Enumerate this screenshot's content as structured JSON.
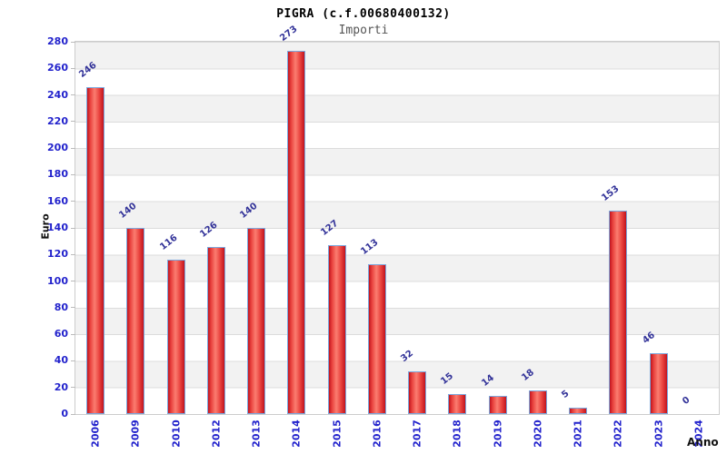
{
  "header": {
    "title": "PIGRA (c.f.00680400132)",
    "subtitle": "Importi"
  },
  "chart_data": {
    "type": "bar",
    "title": "PIGRA (c.f.00680400132)",
    "subtitle": "Importi",
    "xlabel": "Anno",
    "ylabel": "Euro",
    "categories": [
      "2006",
      "2009",
      "2010",
      "2012",
      "2013",
      "2014",
      "2015",
      "2016",
      "2017",
      "2018",
      "2019",
      "2020",
      "2021",
      "2022",
      "2023",
      "2024"
    ],
    "values": [
      246,
      140,
      116,
      126,
      140,
      273,
      127,
      113,
      32,
      15,
      14,
      18,
      5,
      153,
      46,
      0
    ],
    "ylim": [
      0,
      280
    ],
    "ytick_step": 20,
    "yticks": [
      0,
      20,
      40,
      60,
      80,
      100,
      120,
      140,
      160,
      180,
      200,
      220,
      240,
      260,
      280
    ],
    "grid": "horizontal gridlines with alternating gray/white bands every 20 units",
    "legend": "none",
    "colors": {
      "bar_edge": "#c0141f",
      "bar_center": "#fb7d70",
      "bar_border": "#7ba7dd",
      "tick_label": "#2222cc",
      "value_label": "#333399",
      "band_gray": "#f2f2f2",
      "band_white": "#ffffff",
      "gridline": "#dcdcdc",
      "plot_border": "#cccccc",
      "title_color": "#000000",
      "subtitle_color": "#555555"
    }
  }
}
